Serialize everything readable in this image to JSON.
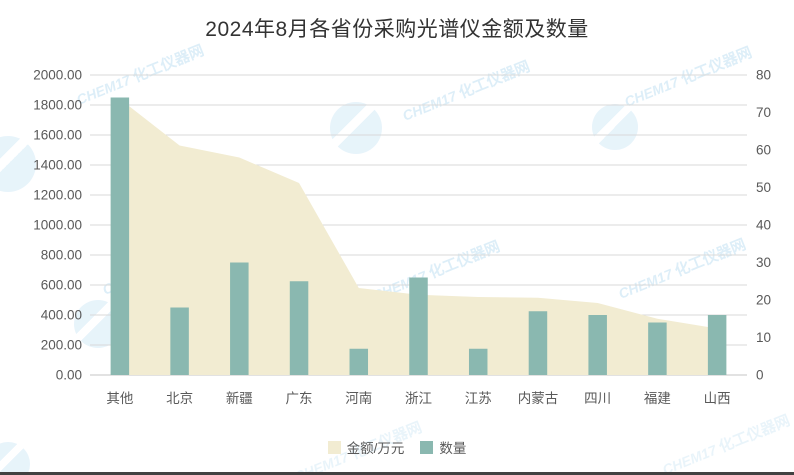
{
  "chart_data": {
    "type": "combo",
    "title": "2024年8月各省份采购光谱仪金额及数量",
    "categories": [
      "其他",
      "北京",
      "新疆",
      "广东",
      "河南",
      "浙江",
      "江苏",
      "内蒙古",
      "四川",
      "福建",
      "山西"
    ],
    "series": [
      {
        "name": "金额/万元",
        "type": "area",
        "axis": "left",
        "color": "#F2ECD2",
        "values": [
          1840,
          1530,
          1450,
          1280,
          580,
          535,
          520,
          515,
          480,
          375,
          310
        ]
      },
      {
        "name": "数量",
        "type": "bar",
        "axis": "right",
        "color": "#8AB8B0",
        "values": [
          74,
          18,
          30,
          25,
          7,
          26,
          7,
          17,
          16,
          14,
          16
        ]
      }
    ],
    "y_left": {
      "min": 0,
      "max": 2000,
      "step": 200,
      "decimals": 2
    },
    "y_right": {
      "min": 0,
      "max": 80,
      "step": 10
    },
    "grid": true,
    "legend_position": "bottom",
    "gridline_color": "#D9D9D9",
    "baseline_color": "#C4C4C4",
    "axis_text_color": "#595959"
  },
  "watermark": {
    "latin": "CHEM17",
    "cjk": "化工仪器网"
  }
}
